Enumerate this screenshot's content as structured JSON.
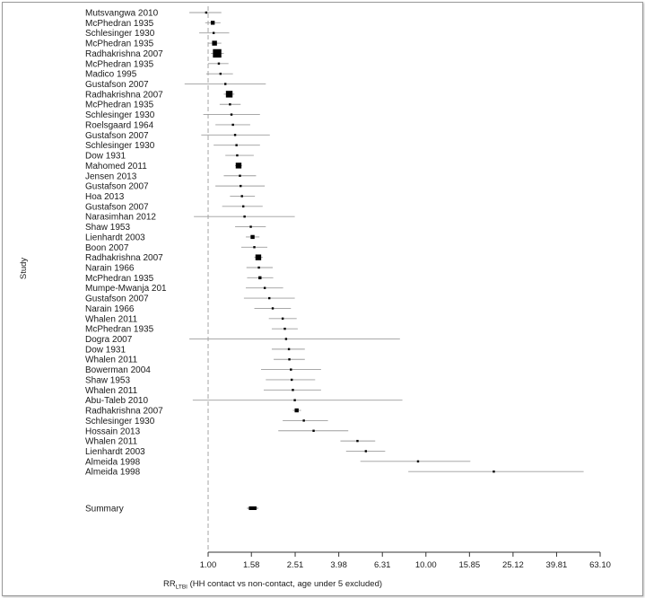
{
  "chart_data": {
    "type": "forest",
    "ylabel": "Study",
    "xlabel_main": "RR",
    "xlabel_sub": "LTBI",
    "xlabel_rest": " (HH contact vs non-contact, age under 5 excluded)",
    "x_scale": "log",
    "x_ticks": [
      "1.00",
      "1.58",
      "2.51",
      "3.98",
      "6.31",
      "10.00",
      "15.85",
      "25.12",
      "39.81",
      "63.10"
    ],
    "x_tick_values": [
      1.0,
      1.58,
      2.51,
      3.98,
      6.31,
      10.0,
      15.85,
      25.12,
      39.81,
      63.1
    ],
    "xlim": [
      0.69,
      63.1
    ],
    "reference_line": 1.0,
    "studies": [
      {
        "label": "Mutsvangwa 2010",
        "rr": 0.98,
        "lo": 0.82,
        "hi": 1.15,
        "weight": 1
      },
      {
        "label": "McPhedran 1935",
        "rr": 1.05,
        "lo": 0.97,
        "hi": 1.14,
        "weight": 3
      },
      {
        "label": "Schlesinger 1930",
        "rr": 1.06,
        "lo": 0.91,
        "hi": 1.25,
        "weight": 1
      },
      {
        "label": "McPhedran 1935",
        "rr": 1.07,
        "lo": 1.0,
        "hi": 1.15,
        "weight": 4
      },
      {
        "label": "Radhakrishna 2007",
        "rr": 1.1,
        "lo": 1.03,
        "hi": 1.18,
        "weight": 8
      },
      {
        "label": "McPhedran 1935",
        "rr": 1.12,
        "lo": 1.0,
        "hi": 1.24,
        "weight": 1
      },
      {
        "label": "Madico 1995",
        "rr": 1.14,
        "lo": 0.98,
        "hi": 1.3,
        "weight": 1
      },
      {
        "label": "Gustafson 2007",
        "rr": 1.2,
        "lo": 0.78,
        "hi": 1.84,
        "weight": 1
      },
      {
        "label": "Radhakrishna 2007",
        "rr": 1.25,
        "lo": 1.18,
        "hi": 1.32,
        "weight": 6
      },
      {
        "label": "McPhedran 1935",
        "rr": 1.26,
        "lo": 1.13,
        "hi": 1.41,
        "weight": 1
      },
      {
        "label": "Schlesinger 1930",
        "rr": 1.28,
        "lo": 0.95,
        "hi": 1.73,
        "weight": 1
      },
      {
        "label": "Roelsgaard 1964",
        "rr": 1.3,
        "lo": 1.08,
        "hi": 1.56,
        "weight": 1
      },
      {
        "label": "Gustafson 2007",
        "rr": 1.33,
        "lo": 0.93,
        "hi": 1.92,
        "weight": 1
      },
      {
        "label": "Schlesinger 1930",
        "rr": 1.35,
        "lo": 1.06,
        "hi": 1.73,
        "weight": 1
      },
      {
        "label": "Dow 1931",
        "rr": 1.36,
        "lo": 1.2,
        "hi": 1.62,
        "weight": 1
      },
      {
        "label": "Mahomed 2011",
        "rr": 1.38,
        "lo": 1.33,
        "hi": 1.43,
        "weight": 5
      },
      {
        "label": "Jensen 2013",
        "rr": 1.4,
        "lo": 1.18,
        "hi": 1.66,
        "weight": 1
      },
      {
        "label": "Gustafson 2007",
        "rr": 1.41,
        "lo": 1.08,
        "hi": 1.82,
        "weight": 1
      },
      {
        "label": "Hoa 2013",
        "rr": 1.43,
        "lo": 1.26,
        "hi": 1.64,
        "weight": 1
      },
      {
        "label": "Gustafson 2007",
        "rr": 1.45,
        "lo": 1.16,
        "hi": 1.78,
        "weight": 1
      },
      {
        "label": "Narasimhan 2012",
        "rr": 1.47,
        "lo": 0.86,
        "hi": 2.5,
        "weight": 1
      },
      {
        "label": "Shaw 1953",
        "rr": 1.57,
        "lo": 1.33,
        "hi": 1.84,
        "weight": 1
      },
      {
        "label": "Lienhardt 2003",
        "rr": 1.6,
        "lo": 1.49,
        "hi": 1.72,
        "weight": 3
      },
      {
        "label": "Boon 2007",
        "rr": 1.63,
        "lo": 1.42,
        "hi": 1.87,
        "weight": 1
      },
      {
        "label": "Radhakrishna 2007",
        "rr": 1.7,
        "lo": 1.63,
        "hi": 1.78,
        "weight": 5
      },
      {
        "label": "Narain 1966",
        "rr": 1.71,
        "lo": 1.5,
        "hi": 1.98,
        "weight": 1
      },
      {
        "label": "McPhedran 1935",
        "rr": 1.73,
        "lo": 1.51,
        "hi": 1.99,
        "weight": 2
      },
      {
        "label": "Mumpe-Mwanja 201",
        "rr": 1.82,
        "lo": 1.49,
        "hi": 2.21,
        "weight": 1
      },
      {
        "label": "Gustafson 2007",
        "rr": 1.91,
        "lo": 1.46,
        "hi": 2.5,
        "weight": 1
      },
      {
        "label": "Narain 1966",
        "rr": 1.98,
        "lo": 1.63,
        "hi": 2.4,
        "weight": 1
      },
      {
        "label": "Whalen 2011",
        "rr": 2.2,
        "lo": 1.9,
        "hi": 2.55,
        "weight": 1
      },
      {
        "label": "McPhedran 1935",
        "rr": 2.25,
        "lo": 1.96,
        "hi": 2.58,
        "weight": 1
      },
      {
        "label": "Dogra 2007",
        "rr": 2.28,
        "lo": 0.82,
        "hi": 7.6,
        "weight": 1
      },
      {
        "label": "Dow 1931",
        "rr": 2.35,
        "lo": 1.96,
        "hi": 2.78,
        "weight": 1
      },
      {
        "label": "Whalen 2011",
        "rr": 2.36,
        "lo": 2.0,
        "hi": 2.78,
        "weight": 1
      },
      {
        "label": "Bowerman 2004",
        "rr": 2.4,
        "lo": 1.75,
        "hi": 3.3,
        "weight": 1
      },
      {
        "label": "Shaw 1953",
        "rr": 2.42,
        "lo": 1.84,
        "hi": 3.1,
        "weight": 1
      },
      {
        "label": "Whalen 2011",
        "rr": 2.45,
        "lo": 1.8,
        "hi": 3.3,
        "weight": 1
      },
      {
        "label": "Abu-Taleb 2010",
        "rr": 2.5,
        "lo": 0.85,
        "hi": 7.8,
        "weight": 1
      },
      {
        "label": "Radhakrishna 2007",
        "rr": 2.55,
        "lo": 2.45,
        "hi": 2.67,
        "weight": 3
      },
      {
        "label": "Schlesinger 1930",
        "rr": 2.75,
        "lo": 2.2,
        "hi": 3.55,
        "weight": 1
      },
      {
        "label": "Hossain 2013",
        "rr": 3.05,
        "lo": 2.1,
        "hi": 4.4,
        "weight": 1
      },
      {
        "label": "Whalen 2011",
        "rr": 4.85,
        "lo": 4.05,
        "hi": 5.85,
        "weight": 1
      },
      {
        "label": "Lienhardt 2003",
        "rr": 5.3,
        "lo": 4.3,
        "hi": 6.5,
        "weight": 1
      },
      {
        "label": "Almeida 1998",
        "rr": 9.2,
        "lo": 5.0,
        "hi": 16.0,
        "weight": 1
      },
      {
        "label": "Almeida 1998",
        "rr": 20.5,
        "lo": 8.3,
        "hi": 53.0,
        "weight": 1
      }
    ],
    "summary": {
      "label": "Summary",
      "rr": 1.6,
      "lo": 1.51,
      "hi": 1.7
    }
  }
}
